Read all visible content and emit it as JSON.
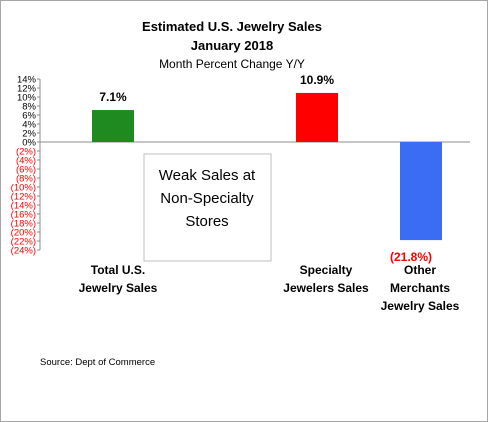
{
  "chart_data": {
    "type": "bar",
    "title_lines": [
      "Estimated U.S. Jewelry Sales",
      "January 2018"
    ],
    "subtitle": "Month Percent Change Y/Y",
    "categories": [
      [
        "Total U.S.",
        "Jewelry Sales"
      ],
      [
        "Specialty",
        "Jewelers Sales"
      ],
      [
        "Other",
        "Merchants",
        "Jewelry Sales"
      ]
    ],
    "values": [
      7.1,
      10.9,
      -21.8
    ],
    "value_labels": [
      "7.1%",
      "10.9%",
      "(21.8%)"
    ],
    "bar_colors": [
      "#1f8a1f",
      "#ff0000",
      "#3a6cf4"
    ],
    "value_label_colors": [
      "#000000",
      "#000000",
      "#ff0000"
    ],
    "ylim": [
      -24,
      14
    ],
    "y_ticks": [
      14,
      12,
      10,
      8,
      6,
      4,
      2,
      0,
      -2,
      -4,
      -6,
      -8,
      -10,
      -12,
      -14,
      -16,
      -18,
      -20,
      -22,
      -24
    ],
    "y_tick_labels": [
      "14%",
      "12%",
      "10%",
      "8%",
      "6%",
      "4%",
      "2%",
      "0%",
      "(2%)",
      "(4%)",
      "(6%)",
      "(8%)",
      "(10%)",
      "(12%)",
      "(14%)",
      "(16%)",
      "(18%)",
      "(20%)",
      "(22%)",
      "(24%)"
    ],
    "negative_tick_color": "#ff0000",
    "annotation_lines": [
      "Weak Sales at",
      "Non-Specialty",
      "Stores"
    ],
    "source": "Source:  Dept of Commerce",
    "grid": false,
    "legend": "none"
  }
}
